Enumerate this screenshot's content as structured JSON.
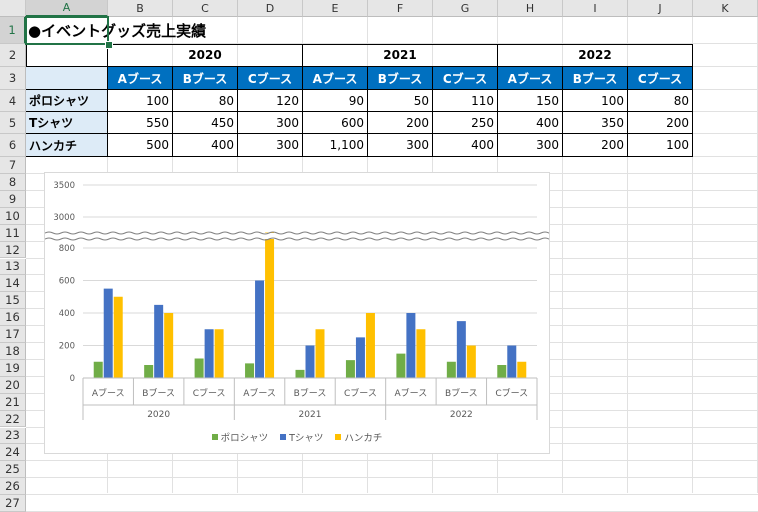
{
  "columns": [
    "A",
    "B",
    "C",
    "D",
    "E",
    "F",
    "G",
    "H",
    "I",
    "J",
    "K"
  ],
  "rows": [
    "1",
    "2",
    "3",
    "4",
    "5",
    "6",
    "7",
    "8",
    "9",
    "10",
    "11",
    "12",
    "13",
    "14",
    "15",
    "16",
    "17",
    "18",
    "19",
    "20",
    "21",
    "22",
    "23",
    "24",
    "25",
    "26",
    "27"
  ],
  "title": "●イベントグッズ売上実績",
  "years": [
    "2020",
    "2021",
    "2022"
  ],
  "booths": [
    "Aブース",
    "Bブース",
    "Cブース"
  ],
  "products": [
    "ポロシャツ",
    "Tシャツ",
    "ハンカチ"
  ],
  "table": [
    [
      "100",
      "80",
      "120",
      "90",
      "50",
      "110",
      "150",
      "100",
      "80"
    ],
    [
      "550",
      "450",
      "300",
      "600",
      "200",
      "250",
      "400",
      "350",
      "200"
    ],
    [
      "500",
      "400",
      "300",
      "1,100",
      "300",
      "400",
      "300",
      "200",
      "100"
    ]
  ],
  "colors": {
    "polo": "#70ad47",
    "tshirt": "#4472c4",
    "hanky": "#ffc000",
    "header_blue": "#0070c0",
    "label_blue": "#ddebf7"
  },
  "chart_data": {
    "type": "bar",
    "categories": [
      "Aブース",
      "Bブース",
      "Cブース",
      "Aブース",
      "Bブース",
      "Cブース",
      "Aブース",
      "Bブース",
      "Cブース"
    ],
    "groups": [
      "2020",
      "2021",
      "2022"
    ],
    "series": [
      {
        "name": "ポロシャツ",
        "values": [
          100,
          80,
          120,
          90,
          50,
          110,
          150,
          100,
          80
        ]
      },
      {
        "name": "Tシャツ",
        "values": [
          550,
          450,
          300,
          600,
          200,
          250,
          400,
          350,
          200
        ]
      },
      {
        "name": "ハンカチ",
        "values": [
          500,
          400,
          300,
          1100,
          300,
          400,
          300,
          200,
          100
        ]
      }
    ],
    "y_ticks_lower": [
      "0",
      "200",
      "400",
      "600",
      "800"
    ],
    "y_ticks_upper": [
      "3000",
      "3500"
    ],
    "axis_break": true,
    "legend": "bottom",
    "grid": true
  }
}
